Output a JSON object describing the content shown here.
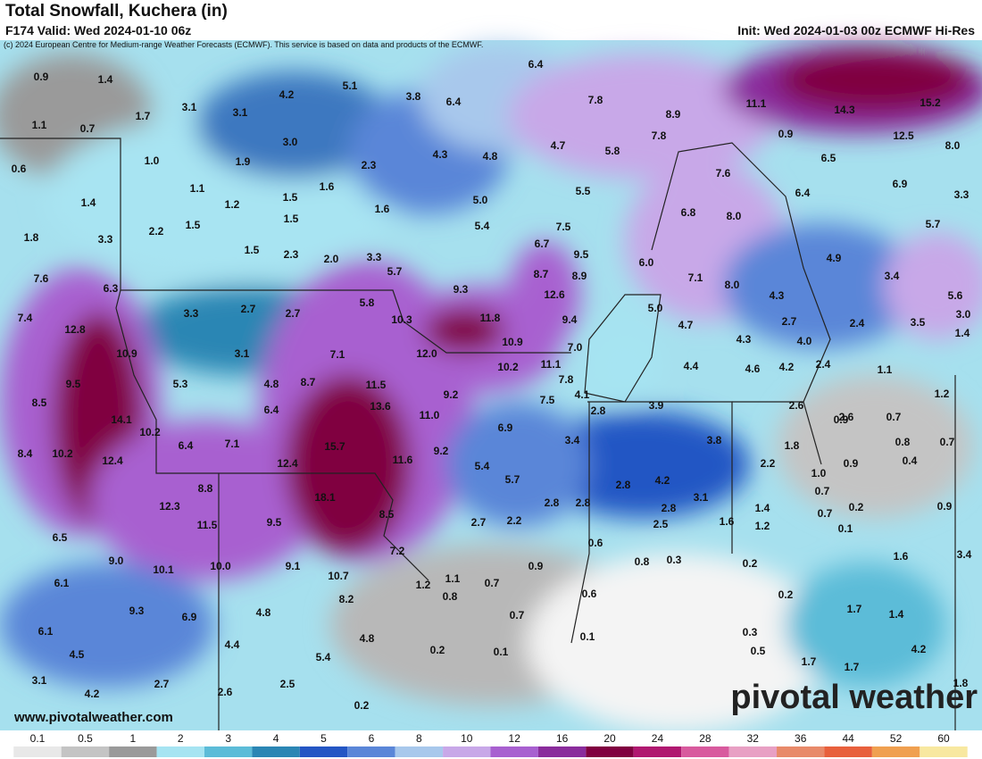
{
  "header": {
    "title": "Total Snowfall, Kuchera (in)",
    "valid": "F174 Valid: Wed 2024-01-10 06z",
    "init": "Init: Wed 2024-01-03 00z ECMWF Hi-Res",
    "credit": "(c) 2024 European Centre for Medium-range Weather Forecasts (ECMWF). This service is based on data and products of the ECMWF."
  },
  "footer": {
    "website": "www.pivotalweather.com",
    "logo": "pivotal weather"
  },
  "legend": {
    "labels": [
      "0.1",
      "0.5",
      "1",
      "2",
      "3",
      "4",
      "5",
      "6",
      "8",
      "10",
      "12",
      "16",
      "20",
      "24",
      "28",
      "32",
      "36",
      "44",
      "52",
      "60"
    ],
    "colors": [
      "#e8e8e8",
      "#c4c4c4",
      "#9a9a9a",
      "#a6e4f2",
      "#5cbcd8",
      "#2b86b4",
      "#2456c4",
      "#5a86d8",
      "#a8c8ec",
      "#c8a8e8",
      "#a860d0",
      "#8a2c9c",
      "#800040",
      "#b01870",
      "#d85a9e",
      "#e8a0c4",
      "#e88a6a",
      "#e8603c",
      "#f0a050",
      "#f8e8a0"
    ]
  },
  "point_labels": [
    "0.9",
    "1.4",
    "1.1",
    "0.7",
    "1.7",
    "3.1",
    "3.1",
    "4.2",
    "5.1",
    "3.8",
    "6.4",
    "6.4",
    "7.8",
    "8.9",
    "11.1",
    "14.3",
    "15.2",
    "12.5",
    "8.0",
    "0.6",
    "1.0",
    "1.9",
    "3.0",
    "2.3",
    "4.3",
    "4.8",
    "4.7",
    "5.8",
    "7.8",
    "0.9",
    "6.5",
    "6.9",
    "3.3",
    "7.6",
    "1.1",
    "1.6",
    "1.5",
    "1.2",
    "1.4",
    "1.6",
    "5.0",
    "5.5",
    "6.4",
    "6.8",
    "8.0",
    "5.7",
    "1.8",
    "3.3",
    "2.2",
    "1.5",
    "1.5",
    "5.4",
    "7.5",
    "6.7",
    "1.5",
    "2.3",
    "2.0",
    "3.3",
    "6.0",
    "4.9",
    "3.4",
    "9.5",
    "5.7",
    "7.6",
    "6.3",
    "8.7",
    "8.9",
    "9.3",
    "7.1",
    "8.0",
    "4.3",
    "5.6",
    "12.6",
    "5.0",
    "5.8",
    "7.4",
    "12.8",
    "3.3",
    "2.7",
    "2.7",
    "10.3",
    "11.8",
    "9.4",
    "4.7",
    "2.7",
    "2.4",
    "3.5",
    "3.0",
    "1.4",
    "10.9",
    "7.0",
    "4.3",
    "4.0",
    "10.9",
    "3.1",
    "7.1",
    "12.0",
    "11.1",
    "10.2",
    "4.4",
    "4.6",
    "4.2",
    "2.4",
    "1.1",
    "9.5",
    "5.3",
    "4.8",
    "8.7",
    "11.5",
    "7.8",
    "9.2",
    "4.1",
    "1.2",
    "8.5",
    "13.6",
    "7.5",
    "2.8",
    "3.9",
    "2.6",
    "2.6",
    "0.9",
    "0.7",
    "6.4",
    "14.1",
    "11.0",
    "6.9",
    "10.2",
    "3.4",
    "3.8",
    "1.8",
    "0.8",
    "0.7",
    "8.4",
    "10.2",
    "6.4",
    "7.1",
    "15.7",
    "9.2",
    "12.4",
    "12.4",
    "11.6",
    "5.4",
    "2.2",
    "1.0",
    "0.9",
    "0.4",
    "5.7",
    "8.8",
    "18.1",
    "2.8",
    "4.2",
    "0.7",
    "12.3",
    "2.8",
    "2.8",
    "3.1",
    "2.8",
    "1.4",
    "0.2",
    "0.9",
    "0.7",
    "11.5",
    "9.5",
    "8.5",
    "2.7",
    "2.2",
    "2.5",
    "1.6",
    "1.2",
    "0.1",
    "6.5",
    "7.2",
    "0.6",
    "9.0",
    "10.1",
    "10.0",
    "9.1",
    "10.7",
    "0.9",
    "0.8",
    "0.3",
    "0.2",
    "1.6",
    "3.4",
    "6.1",
    "1.2",
    "1.1",
    "0.7",
    "0.6",
    "0.2",
    "0.8",
    "9.3",
    "6.9",
    "4.8",
    "8.2",
    "0.7",
    "1.7",
    "1.4",
    "6.1",
    "0.3",
    "4.8",
    "0.1",
    "4.4",
    "0.2",
    "0.1",
    "0.5",
    "4.2",
    "4.5",
    "5.4",
    "1.7",
    "1.7",
    "3.1",
    "2.7",
    "2.5",
    "1.8",
    "4.2",
    "2.6",
    "0.2"
  ]
}
